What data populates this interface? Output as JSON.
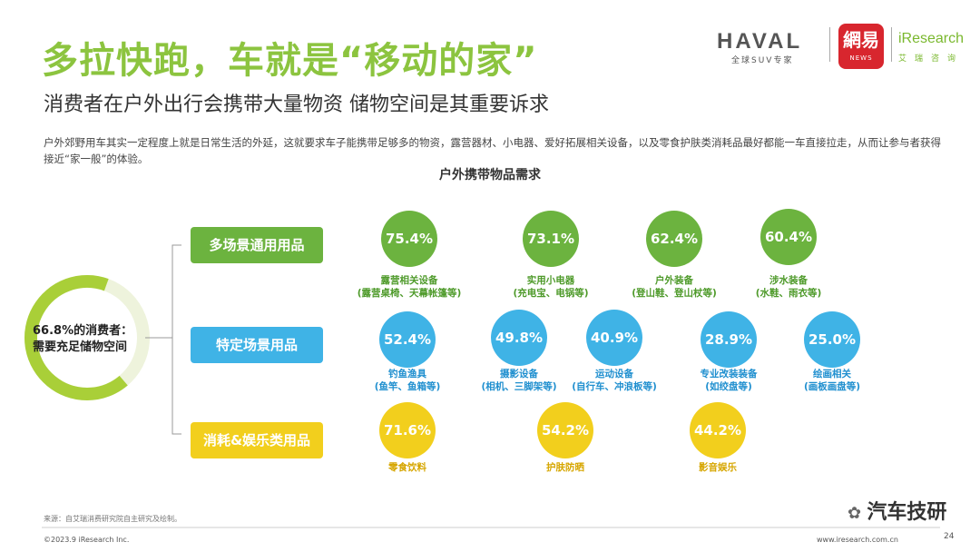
{
  "header": {
    "title": "多拉快跑，车就是“移动的家”",
    "subtitle": "消费者在户外出行会携带大量物资 储物空间是其重要诉求",
    "intro": "户外郊野用车其实一定程度上就是日常生活的外延，这就要求车子能携带足够多的物资，露营器材、小电器、爱好拓展相关设备，以及零食护肤类消耗品最好都能一车直接拉走，从而让参与者获得接近“家一般”的体验。"
  },
  "logos": {
    "haval": "HAVAL",
    "haval_sub": "全球SUV专家",
    "netease": "網易",
    "netease_sub": "NEWS",
    "iresearch": "iResearch",
    "iresearch_sub": "艾瑞咨询"
  },
  "ring": {
    "percent": 66.8,
    "label_line1": "66.8%的消费者：",
    "label_line2": "需要充足储物空间",
    "color": "#a9cf38"
  },
  "chart_data": {
    "type": "table",
    "title": "户外携带物品需求",
    "groups": [
      {
        "category": "多场景通用用品",
        "color": "#6cb33f",
        "items": [
          {
            "value": "75.4%",
            "name": "露营相关设备",
            "detail": "(露营桌椅、天幕帐篷等)"
          },
          {
            "value": "73.1%",
            "name": "实用小电器",
            "detail": "(充电宝、电锅等)"
          },
          {
            "value": "62.4%",
            "name": "户外装备",
            "detail": "(登山鞋、登山杖等)"
          },
          {
            "value": "60.4%",
            "name": "涉水装备",
            "detail": "(水鞋、雨衣等)"
          }
        ]
      },
      {
        "category": "特定场景用品",
        "color": "#3fb3e6",
        "items": [
          {
            "value": "52.4%",
            "name": "钓鱼渔具",
            "detail": "(鱼竿、鱼箱等)"
          },
          {
            "value": "49.8%",
            "name": "摄影设备",
            "detail": "(相机、三脚架等)"
          },
          {
            "value": "40.9%",
            "name": "运动设备",
            "detail": "(自行车、冲浪板等)"
          },
          {
            "value": "28.9%",
            "name": "专业改装装备",
            "detail": "(如绞盘等)"
          },
          {
            "value": "25.0%",
            "name": "绘画相关",
            "detail": "(画板画盘等)"
          }
        ]
      },
      {
        "category": "消耗&娱乐类用品",
        "color": "#f2cf1d",
        "items": [
          {
            "value": "71.6%",
            "name": "零食饮料",
            "detail": ""
          },
          {
            "value": "54.2%",
            "name": "护肤防晒",
            "detail": ""
          },
          {
            "value": "44.2%",
            "name": "影音娱乐",
            "detail": ""
          }
        ]
      }
    ]
  },
  "footer": {
    "source": "来源：自艾瑞消费研究院自主研究及绘制。",
    "copyright": "©2023.9 iResearch Inc.",
    "url": "www.iresearch.com.cn",
    "page": "24",
    "watermark": "汽车技研"
  }
}
